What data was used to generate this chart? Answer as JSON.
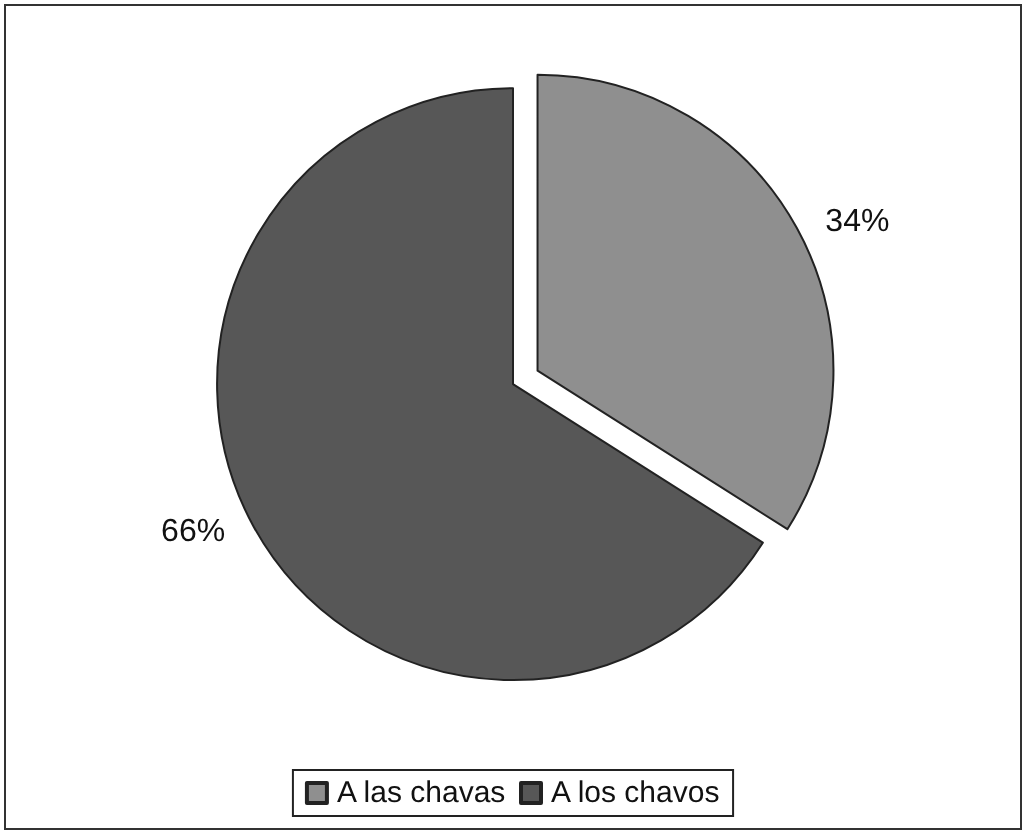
{
  "chart_data": {
    "type": "pie",
    "categories": [
      "A las chavas",
      "A los chavos"
    ],
    "values": [
      34,
      66
    ],
    "colors": [
      "#8f8f8f",
      "#575757"
    ],
    "value_labels": [
      "34%",
      "66%"
    ],
    "legend": "bottom"
  }
}
